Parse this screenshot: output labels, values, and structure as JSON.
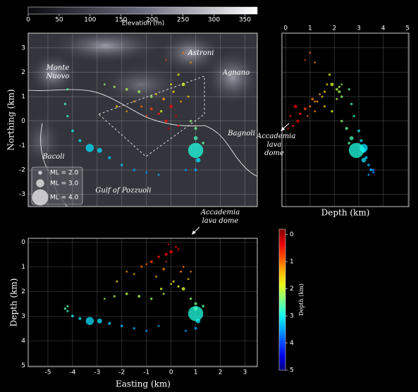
{
  "chart_data": {
    "type": "scatter",
    "colormap": "jet_r",
    "x": [
      -1.2,
      -0.8,
      -0.5,
      -1.5,
      -0.3,
      0.0,
      0.2,
      -1.0,
      0.4,
      -0.6,
      0.1,
      0.7,
      -0.2,
      -2.3,
      -1.8,
      -1.3,
      -0.8,
      -0.3,
      -2.7,
      0.5,
      0.3,
      0.5,
      0.8,
      -0.2,
      -4.2,
      -4.3,
      -4.2,
      -4.0,
      -3.7,
      -3.3,
      -2.9,
      -2.5,
      -2.0,
      -1.5,
      -1.0,
      -0.5,
      0.8,
      1.0,
      1.0,
      1.0,
      1.1,
      1.0,
      0.6,
      1.3,
      -0.1,
      0.3,
      -1.8,
      -2.2,
      0.0,
      -0.4
    ],
    "y": [
      0.6,
      0.5,
      0.3,
      0.8,
      0.9,
      0.6,
      0.2,
      0.2,
      0.8,
      1.1,
      1.2,
      1.0,
      0.0,
      1.4,
      1.3,
      1.2,
      1.0,
      0.9,
      1.5,
      1.5,
      1.9,
      2.8,
      2.4,
      2.5,
      1.3,
      0.7,
      0.2,
      -0.4,
      -0.8,
      -1.1,
      -1.2,
      -1.5,
      -1.8,
      -2.0,
      -2.1,
      -2.2,
      0.0,
      -0.3,
      -0.7,
      -1.2,
      -1.6,
      -2.0,
      -2.0,
      -0.9,
      -0.3,
      -0.2,
      0.4,
      0.6,
      1.5,
      0.4
    ],
    "depth": [
      1.0,
      0.8,
      0.6,
      1.3,
      1.1,
      0.4,
      0.2,
      0.9,
      1.2,
      1.4,
      1.6,
      1.5,
      0.5,
      2.2,
      2.1,
      2.2,
      2.3,
      2.1,
      2.3,
      1.9,
      1.8,
      1.0,
      1.2,
      0.8,
      2.6,
      2.7,
      2.8,
      3.0,
      3.1,
      3.2,
      3.2,
      3.3,
      3.4,
      3.5,
      3.6,
      3.4,
      2.3,
      2.5,
      2.7,
      2.9,
      3.2,
      3.5,
      3.6,
      2.6,
      0.1,
      0.3,
      1.2,
      1.6,
      1.7,
      1.9
    ],
    "magnitude": [
      1.2,
      1.5,
      1.3,
      1.0,
      1.4,
      1.8,
      1.2,
      1.0,
      1.1,
      1.0,
      1.2,
      1.0,
      1.6,
      1.2,
      1.4,
      1.5,
      1.3,
      1.1,
      1.0,
      1.8,
      1.2,
      1.0,
      0.9,
      0.8,
      1.2,
      1.3,
      1.2,
      1.4,
      1.5,
      3.0,
      2.3,
      1.6,
      1.4,
      1.3,
      1.2,
      1.0,
      1.3,
      1.6,
      2.0,
      3.9,
      2.2,
      1.5,
      1.2,
      1.4,
      1.1,
      1.2,
      1.0,
      1.1,
      1.0,
      1.3
    ],
    "elevation_colorbar": {
      "label": "Elevation (m)",
      "lim": [
        0,
        370
      ],
      "ticks": [
        0,
        50,
        100,
        150,
        200,
        250,
        300,
        350
      ]
    },
    "map": {
      "ylabel": "Northing (km)",
      "xlim": [
        -5.8,
        3.5
      ],
      "ylim": [
        -3.5,
        3.6
      ],
      "xticks": [
        -5,
        -4,
        -3,
        -2,
        -1,
        0,
        1,
        2,
        3
      ],
      "yticks": [
        -3,
        -2,
        -1,
        0,
        1,
        2,
        3
      ],
      "grid": true
    },
    "depth_section_ns": {
      "xlabel": "Depth (km)",
      "xlim": [
        -0.15,
        5.05
      ],
      "xticks": [
        0,
        1,
        2,
        3,
        4,
        5
      ],
      "grid": true
    },
    "depth_section_ew": {
      "xlabel": "Easting (km)",
      "ylabel": "Depth (km)",
      "xlim": [
        -5.8,
        3.5
      ],
      "ylim": [
        5.05,
        -0.15
      ],
      "xticks": [
        -5,
        -4,
        -3,
        -2,
        -1,
        0,
        1,
        2,
        3
      ],
      "yticks": [
        0,
        1,
        2,
        3,
        4,
        5
      ],
      "grid": true
    },
    "depth_colorbar": {
      "label": "Depth (km)",
      "lim": [
        -0.2,
        5
      ],
      "ticks": [
        0,
        1,
        2,
        3,
        4,
        5
      ]
    },
    "legend": [
      {
        "value": 2.0,
        "label": "ML = 2.0"
      },
      {
        "value": 3.0,
        "label": "ML = 3.0"
      },
      {
        "value": 4.0,
        "label": "ML = 4.0"
      }
    ],
    "place_names": [
      "Astroni",
      "Agnano",
      "Monte Nuovo",
      "Bagnoli",
      "Bacoli",
      "Gulf of Pozzuoli"
    ],
    "annotations": [
      "Accademia lava dome",
      "Accademia lava dome"
    ]
  }
}
